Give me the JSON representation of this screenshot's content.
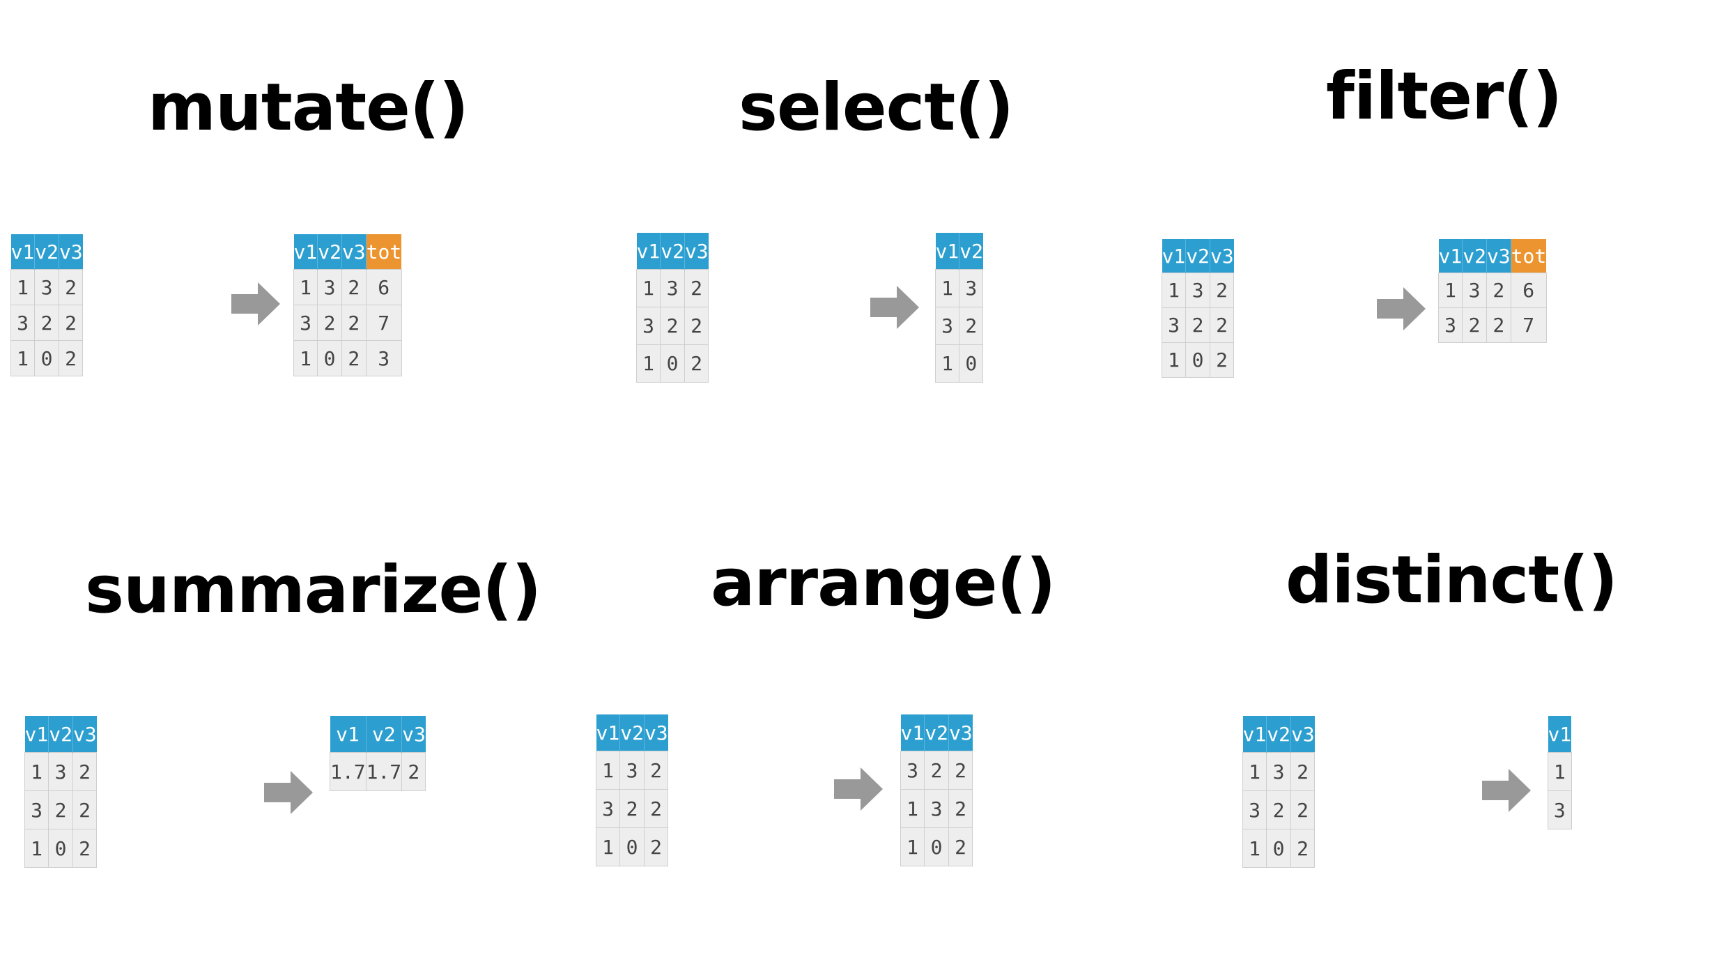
{
  "colors": {
    "header": "#2c9fd0",
    "new_column": "#ec9530",
    "cell": "#eeeeee",
    "arrow": "#999999"
  },
  "panels": [
    {
      "title": "mutate()",
      "input": {
        "columns": [
          "v1",
          "v2",
          "v3"
        ],
        "rows": [
          [
            "1",
            "3",
            "2"
          ],
          [
            "3",
            "2",
            "2"
          ],
          [
            "1",
            "0",
            "2"
          ]
        ]
      },
      "output": {
        "columns": [
          "v1",
          "v2",
          "v3",
          "tot"
        ],
        "new_columns": [
          "tot"
        ],
        "rows": [
          [
            "1",
            "3",
            "2",
            "6"
          ],
          [
            "3",
            "2",
            "2",
            "7"
          ],
          [
            "1",
            "0",
            "2",
            "3"
          ]
        ]
      }
    },
    {
      "title": "select()",
      "input": {
        "columns": [
          "v1",
          "v2",
          "v3"
        ],
        "rows": [
          [
            "1",
            "3",
            "2"
          ],
          [
            "3",
            "2",
            "2"
          ],
          [
            "1",
            "0",
            "2"
          ]
        ]
      },
      "output": {
        "columns": [
          "v1",
          "v2"
        ],
        "new_columns": [],
        "rows": [
          [
            "1",
            "3"
          ],
          [
            "3",
            "2"
          ],
          [
            "1",
            "0"
          ]
        ]
      }
    },
    {
      "title": "filter()",
      "input": {
        "columns": [
          "v1",
          "v2",
          "v3"
        ],
        "rows": [
          [
            "1",
            "3",
            "2"
          ],
          [
            "3",
            "2",
            "2"
          ],
          [
            "1",
            "0",
            "2"
          ]
        ]
      },
      "output": {
        "columns": [
          "v1",
          "v2",
          "v3",
          "tot"
        ],
        "new_columns": [
          "tot"
        ],
        "rows": [
          [
            "1",
            "3",
            "2",
            "6"
          ],
          [
            "3",
            "2",
            "2",
            "7"
          ]
        ]
      }
    },
    {
      "title": "summarize()",
      "input": {
        "columns": [
          "v1",
          "v2",
          "v3"
        ],
        "rows": [
          [
            "1",
            "3",
            "2"
          ],
          [
            "3",
            "2",
            "2"
          ],
          [
            "1",
            "0",
            "2"
          ]
        ]
      },
      "output": {
        "columns": [
          "v1",
          "v2",
          "v3"
        ],
        "new_columns": [],
        "rows": [
          [
            "1.7",
            "1.7",
            "2"
          ]
        ]
      }
    },
    {
      "title": "arrange()",
      "input": {
        "columns": [
          "v1",
          "v2",
          "v3"
        ],
        "rows": [
          [
            "1",
            "3",
            "2"
          ],
          [
            "3",
            "2",
            "2"
          ],
          [
            "1",
            "0",
            "2"
          ]
        ]
      },
      "output": {
        "columns": [
          "v1",
          "v2",
          "v3"
        ],
        "new_columns": [],
        "rows": [
          [
            "3",
            "2",
            "2"
          ],
          [
            "1",
            "3",
            "2"
          ],
          [
            "1",
            "0",
            "2"
          ]
        ]
      }
    },
    {
      "title": "distinct()",
      "input": {
        "columns": [
          "v1",
          "v2",
          "v3"
        ],
        "rows": [
          [
            "1",
            "3",
            "2"
          ],
          [
            "3",
            "2",
            "2"
          ],
          [
            "1",
            "0",
            "2"
          ]
        ]
      },
      "output": {
        "columns": [
          "v1"
        ],
        "new_columns": [],
        "rows": [
          [
            "1"
          ],
          [
            "3"
          ]
        ]
      }
    }
  ]
}
